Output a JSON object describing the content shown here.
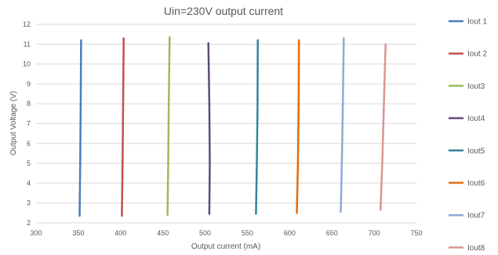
{
  "chart_data": {
    "type": "line",
    "title": "Uin=230V output current",
    "xlabel": "Output current (mA)",
    "ylabel": "Output Voltage (V)",
    "xlim": [
      300,
      750
    ],
    "ylim": [
      2,
      12
    ],
    "xticks": [
      300,
      350,
      400,
      450,
      500,
      550,
      600,
      650,
      700,
      750
    ],
    "yticks": [
      2,
      3,
      4,
      5,
      6,
      7,
      8,
      9,
      10,
      11,
      12
    ],
    "grid": "horizontal",
    "legend_position": "right",
    "series": [
      {
        "name": "Iout 1",
        "color": "#4a7ebb",
        "points": [
          [
            351.5,
            2.35
          ],
          [
            352.2,
            5
          ],
          [
            352.8,
            8
          ],
          [
            353.3,
            11.2
          ]
        ]
      },
      {
        "name": "Iout 2",
        "color": "#c0504d",
        "points": [
          [
            401.5,
            2.35
          ],
          [
            402.3,
            5
          ],
          [
            403,
            8
          ],
          [
            403.6,
            11.3
          ]
        ]
      },
      {
        "name": "Iout3",
        "color": "#9bbb59",
        "points": [
          [
            455.5,
            2.4
          ],
          [
            456.3,
            5
          ],
          [
            457,
            8
          ],
          [
            458,
            11.35
          ]
        ]
      },
      {
        "name": "Iout4",
        "color": "#604a7b",
        "points": [
          [
            505,
            2.45
          ],
          [
            505.5,
            5
          ],
          [
            505,
            8
          ],
          [
            503.8,
            11.05
          ]
        ]
      },
      {
        "name": "Iout5",
        "color": "#31859c",
        "points": [
          [
            560.2,
            2.45
          ],
          [
            561.2,
            5
          ],
          [
            562,
            8
          ],
          [
            562.3,
            11.2
          ]
        ]
      },
      {
        "name": "Iout6",
        "color": "#e46c0a",
        "points": [
          [
            608.5,
            2.5
          ],
          [
            609.8,
            5
          ],
          [
            610.6,
            8
          ],
          [
            611,
            11.2
          ]
        ]
      },
      {
        "name": "Iout7",
        "color": "#8eaadb",
        "points": [
          [
            660.5,
            2.55
          ],
          [
            661.8,
            5
          ],
          [
            663,
            8
          ],
          [
            664,
            11.3
          ]
        ]
      },
      {
        "name": "Iout8",
        "color": "#d99694",
        "points": [
          [
            707.5,
            2.65
          ],
          [
            709.5,
            5
          ],
          [
            711.5,
            8
          ],
          [
            713.5,
            11
          ]
        ]
      }
    ]
  }
}
